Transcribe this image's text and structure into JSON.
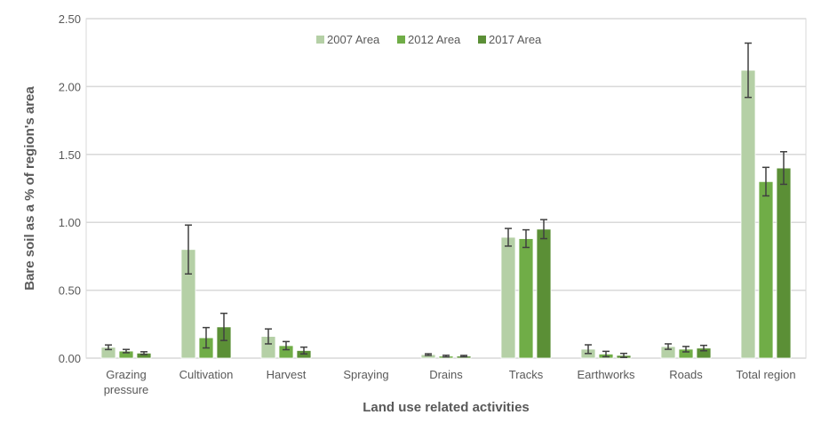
{
  "chart_data": {
    "type": "bar",
    "title": "",
    "xlabel": "Land use related activities",
    "ylabel": "Bare soil as a % of region's area",
    "ylim": [
      0,
      2.5
    ],
    "yticks": [
      "0.00",
      "0.50",
      "1.00",
      "1.50",
      "2.00",
      "2.50"
    ],
    "grid": true,
    "legend_position": "top-center",
    "categories": [
      [
        "Grazing",
        "pressure"
      ],
      [
        "Cultivation"
      ],
      [
        "Harvest"
      ],
      [
        "Spraying"
      ],
      [
        "Drains"
      ],
      [
        "Tracks"
      ],
      [
        "Earthworks"
      ],
      [
        "Roads"
      ],
      [
        "Total region"
      ]
    ],
    "series": [
      {
        "name": "2007 Area",
        "color": "#b5d0a6",
        "values": [
          0.08,
          0.8,
          0.16,
          0,
          0.026,
          0.89,
          0.066,
          0.085,
          2.12
        ],
        "errors": [
          0.017,
          0.18,
          0.055,
          0,
          0.006,
          0.065,
          0.032,
          0.02,
          0.2
        ]
      },
      {
        "name": "2012 Area",
        "color": "#70ad47",
        "values": [
          0.052,
          0.15,
          0.092,
          0,
          0.015,
          0.88,
          0.03,
          0.066,
          1.3
        ],
        "errors": [
          0.012,
          0.075,
          0.03,
          0,
          0.006,
          0.065,
          0.02,
          0.02,
          0.105
        ]
      },
      {
        "name": "2017 Area",
        "color": "#5b8f36",
        "values": [
          0.037,
          0.23,
          0.056,
          0,
          0.015,
          0.95,
          0.02,
          0.074,
          1.4
        ],
        "errors": [
          0.01,
          0.1,
          0.025,
          0,
          0.005,
          0.07,
          0.015,
          0.02,
          0.12
        ]
      }
    ]
  }
}
